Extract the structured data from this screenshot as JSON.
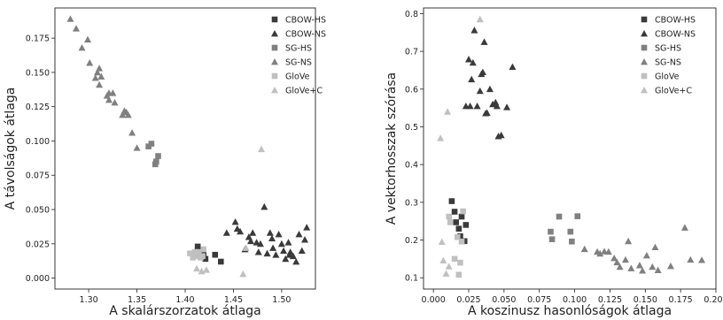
{
  "series_styles": [
    {
      "name": "CBOW-HS",
      "marker": "square",
      "color": "#3a3a3a"
    },
    {
      "name": "CBOW-NS",
      "marker": "triangle",
      "color": "#3a3a3a"
    },
    {
      "name": "SG-HS",
      "marker": "square",
      "color": "#808080"
    },
    {
      "name": "SG-NS",
      "marker": "triangle",
      "color": "#808080"
    },
    {
      "name": "GloVe",
      "marker": "square",
      "color": "#c0c0c0"
    },
    {
      "name": "GloVe+C",
      "marker": "triangle",
      "color": "#c0c0c0"
    }
  ],
  "chart_data": [
    {
      "type": "scatter",
      "xlabel": "A skalárszorzatok átlaga",
      "ylabel": "A távolságok átlaga",
      "xlim": [
        1.265,
        1.535
      ],
      "ylim": [
        -0.008,
        0.197
      ],
      "xticks": [
        1.3,
        1.35,
        1.4,
        1.45,
        1.5
      ],
      "xtick_labels": [
        "1.30",
        "1.35",
        "1.40",
        "1.45",
        "1.50"
      ],
      "yticks": [
        0.0,
        0.025,
        0.05,
        0.075,
        0.1,
        0.125,
        0.15,
        0.175
      ],
      "ytick_labels": [
        "0.000",
        "0.025",
        "0.050",
        "0.075",
        "0.100",
        "0.125",
        "0.150",
        "0.175"
      ],
      "legend": "top-right",
      "grid": false,
      "series": [
        {
          "name": "CBOW-HS",
          "x": [
            1.413,
            1.413,
            1.419,
            1.421,
            1.431,
            1.437
          ],
          "y": [
            0.023,
            0.02,
            0.017,
            0.014,
            0.017,
            0.012
          ]
        },
        {
          "name": "CBOW-NS",
          "x": [
            1.443,
            1.452,
            1.454,
            1.462,
            1.466,
            1.47,
            1.474,
            1.478,
            1.482,
            1.485,
            1.488,
            1.491,
            1.494,
            1.497,
            1.5,
            1.504,
            1.507,
            1.509,
            1.512,
            1.515,
            1.518,
            1.521,
            1.524,
            1.526,
            1.457,
            1.468,
            1.476,
            1.49,
            1.502,
            1.508
          ],
          "y": [
            0.033,
            0.041,
            0.036,
            0.021,
            0.03,
            0.033,
            0.026,
            0.025,
            0.052,
            0.018,
            0.033,
            0.022,
            0.017,
            0.032,
            0.025,
            0.014,
            0.026,
            0.019,
            0.016,
            0.012,
            0.032,
            0.02,
            0.028,
            0.037,
            0.034,
            0.027,
            0.019,
            0.029,
            0.02,
            0.017
          ]
        },
        {
          "name": "SG-HS",
          "x": [
            1.362,
            1.365,
            1.369,
            1.37,
            1.372
          ],
          "y": [
            0.096,
            0.098,
            0.083,
            0.085,
            0.089
          ]
        },
        {
          "name": "SG-NS",
          "x": [
            1.281,
            1.287,
            1.293,
            1.299,
            1.301,
            1.307,
            1.309,
            1.311,
            1.313,
            1.319,
            1.321,
            1.325,
            1.327,
            1.335,
            1.337,
            1.341,
            1.345,
            1.35,
            1.311,
            1.321,
            1.339
          ],
          "y": [
            0.189,
            0.182,
            0.168,
            0.174,
            0.157,
            0.146,
            0.15,
            0.141,
            0.147,
            0.133,
            0.13,
            0.135,
            0.128,
            0.119,
            0.122,
            0.119,
            0.106,
            0.095,
            0.153,
            0.135,
            0.121
          ]
        },
        {
          "name": "GloVe",
          "x": [
            1.405,
            1.408,
            1.411,
            1.412,
            1.414,
            1.416,
            1.418,
            1.419,
            1.41
          ],
          "y": [
            0.018,
            0.015,
            0.017,
            0.016,
            0.019,
            0.015,
            0.016,
            0.021,
            0.019
          ]
        },
        {
          "name": "GloVe+C",
          "x": [
            1.412,
            1.417,
            1.422,
            1.46,
            1.463,
            1.479
          ],
          "y": [
            0.007,
            0.005,
            0.006,
            0.003,
            0.022,
            0.094
          ]
        }
      ]
    },
    {
      "type": "scatter",
      "xlabel": "A koszinusz hasonlóságok átlaga",
      "ylabel": "A vektorhosszak szórása",
      "xlim": [
        -0.007,
        0.2
      ],
      "ylim": [
        0.07,
        0.815
      ],
      "xticks": [
        0.0,
        0.025,
        0.05,
        0.075,
        0.1,
        0.125,
        0.15,
        0.175,
        0.2
      ],
      "xtick_labels": [
        "0.000",
        "0.025",
        "0.050",
        "0.075",
        "0.100",
        "0.125",
        "0.150",
        "0.175",
        "0.200"
      ],
      "yticks": [
        0.1,
        0.2,
        0.3,
        0.4,
        0.5,
        0.6,
        0.7,
        0.8
      ],
      "ytick_labels": [
        "0.1",
        "0.2",
        "0.3",
        "0.4",
        "0.5",
        "0.6",
        "0.7",
        "0.8"
      ],
      "legend": "top-right",
      "grid": false,
      "series": [
        {
          "name": "CBOW-HS",
          "x": [
            0.013,
            0.015,
            0.016,
            0.018,
            0.019,
            0.02,
            0.022,
            0.023
          ],
          "y": [
            0.303,
            0.275,
            0.247,
            0.23,
            0.21,
            0.262,
            0.197,
            0.24
          ]
        },
        {
          "name": "CBOW-NS",
          "x": [
            0.023,
            0.025,
            0.027,
            0.028,
            0.029,
            0.031,
            0.033,
            0.034,
            0.036,
            0.037,
            0.038,
            0.04,
            0.042,
            0.044,
            0.046,
            0.048,
            0.052,
            0.056,
            0.026,
            0.035,
            0.045
          ],
          "y": [
            0.555,
            0.679,
            0.626,
            0.67,
            0.756,
            0.555,
            0.595,
            0.64,
            0.725,
            0.536,
            0.537,
            0.6,
            0.56,
            0.565,
            0.475,
            0.478,
            0.552,
            0.659,
            0.555,
            0.645,
            0.555
          ]
        },
        {
          "name": "SG-HS",
          "x": [
            0.083,
            0.084,
            0.089,
            0.097,
            0.098,
            0.102
          ],
          "y": [
            0.222,
            0.202,
            0.262,
            0.222,
            0.196,
            0.263
          ]
        },
        {
          "name": "SG-NS",
          "x": [
            0.107,
            0.116,
            0.118,
            0.121,
            0.124,
            0.128,
            0.13,
            0.132,
            0.136,
            0.138,
            0.14,
            0.146,
            0.148,
            0.151,
            0.155,
            0.157,
            0.159,
            0.168,
            0.178,
            0.182,
            0.19
          ],
          "y": [
            0.176,
            0.169,
            0.164,
            0.17,
            0.169,
            0.152,
            0.141,
            0.129,
            0.148,
            0.197,
            0.125,
            0.133,
            0.119,
            0.159,
            0.129,
            0.181,
            0.12,
            0.131,
            0.233,
            0.148,
            0.147
          ]
        },
        {
          "name": "GloVe",
          "x": [
            0.011,
            0.012,
            0.015,
            0.017,
            0.018,
            0.019,
            0.02,
            0.021
          ],
          "y": [
            0.262,
            0.247,
            0.15,
            0.208,
            0.108,
            0.14,
            0.196,
            0.276
          ]
        },
        {
          "name": "GloVe+C",
          "x": [
            0.005,
            0.006,
            0.007,
            0.009,
            0.01,
            0.011,
            0.033
          ],
          "y": [
            0.47,
            0.195,
            0.146,
            0.111,
            0.54,
            0.13,
            0.785
          ]
        }
      ]
    }
  ]
}
